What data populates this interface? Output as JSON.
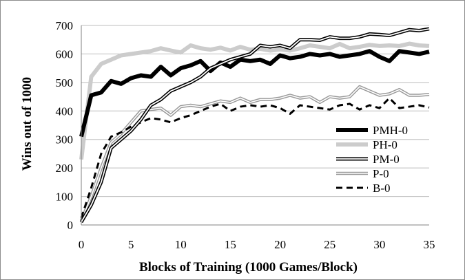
{
  "chart_data": {
    "type": "line",
    "title": "",
    "xlabel": "Blocks of Training (1000 Games/Block)",
    "ylabel": "Wins out of 1000",
    "xlim": [
      0,
      35
    ],
    "ylim": [
      0,
      700
    ],
    "xticks": [
      "0",
      "5",
      "10",
      "15",
      "20",
      "25",
      "30",
      "35"
    ],
    "yticks": [
      "0",
      "100",
      "200",
      "300",
      "400",
      "500",
      "600",
      "700"
    ],
    "grid": "horizontal",
    "legend": "right",
    "x": [
      0,
      1,
      2,
      3,
      4,
      5,
      6,
      7,
      8,
      9,
      10,
      11,
      12,
      13,
      14,
      15,
      16,
      17,
      18,
      19,
      20,
      21,
      22,
      23,
      24,
      25,
      26,
      27,
      28,
      29,
      30,
      31,
      32,
      33,
      34,
      35
    ],
    "series": [
      {
        "name": "PMH-0",
        "style": "thick-black",
        "color": "#000000",
        "values": [
          310,
          455,
          465,
          505,
          495,
          515,
          525,
          520,
          555,
          525,
          550,
          560,
          575,
          540,
          570,
          555,
          580,
          575,
          580,
          565,
          595,
          585,
          590,
          600,
          595,
          600,
          590,
          595,
          600,
          610,
          590,
          575,
          610,
          605,
          600,
          608
        ]
      },
      {
        "name": "PH-0",
        "style": "thick-gray",
        "color": "#cccccc",
        "values": [
          230,
          520,
          565,
          580,
          595,
          600,
          605,
          610,
          620,
          612,
          605,
          630,
          620,
          615,
          622,
          612,
          625,
          615,
          618,
          612,
          616,
          612,
          620,
          630,
          625,
          620,
          635,
          620,
          625,
          632,
          628,
          630,
          628,
          636,
          630,
          628
        ]
      },
      {
        "name": "PM-0",
        "style": "double-black",
        "color": "#000000",
        "values": [
          10,
          70,
          150,
          270,
          300,
          330,
          370,
          420,
          440,
          470,
          485,
          500,
          520,
          550,
          565,
          580,
          590,
          600,
          630,
          625,
          630,
          620,
          650,
          650,
          648,
          660,
          655,
          655,
          660,
          670,
          668,
          665,
          675,
          685,
          682,
          688
        ]
      },
      {
        "name": "P-0",
        "style": "double-gray",
        "color": "#999999",
        "values": [
          15,
          100,
          200,
          290,
          320,
          360,
          400,
          405,
          410,
          385,
          415,
          420,
          415,
          425,
          435,
          430,
          445,
          430,
          440,
          440,
          445,
          455,
          445,
          450,
          430,
          450,
          445,
          450,
          485,
          470,
          455,
          460,
          475,
          455,
          455,
          458
        ]
      },
      {
        "name": "B-0",
        "style": "dashed-black",
        "color": "#000000",
        "values": [
          25,
          130,
          250,
          310,
          325,
          345,
          360,
          375,
          370,
          360,
          375,
          385,
          400,
          415,
          425,
          400,
          415,
          420,
          415,
          420,
          410,
          390,
          420,
          415,
          410,
          405,
          420,
          425,
          405,
          420,
          410,
          445,
          410,
          415,
          420,
          412
        ]
      }
    ]
  }
}
